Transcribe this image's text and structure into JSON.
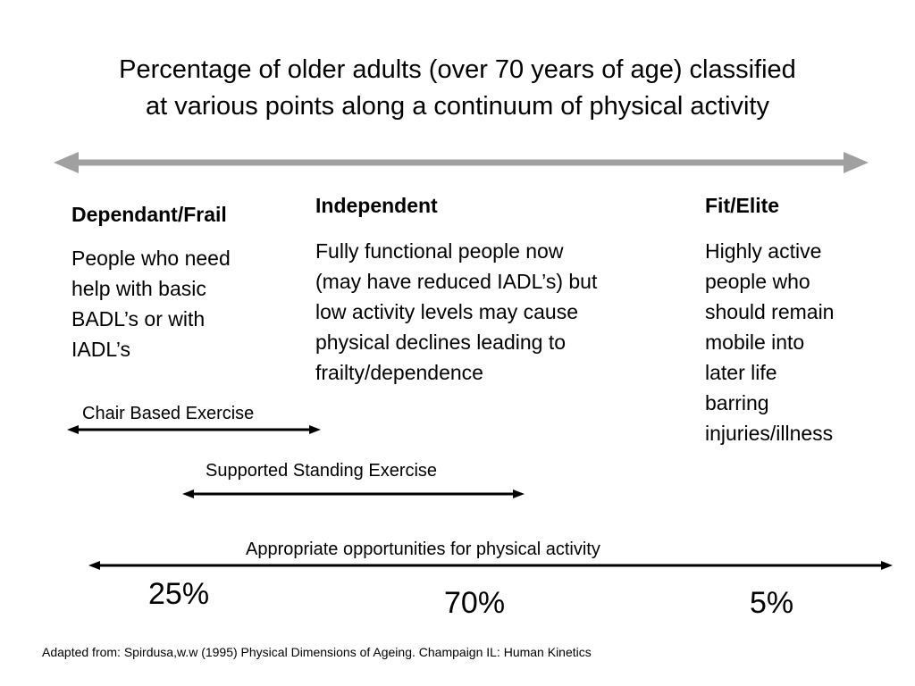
{
  "title": {
    "line1": "Percentage of older adults (over 70 years of age) classified",
    "line2": "at various points along a continuum of physical activity"
  },
  "continuum_arrow": {
    "color": "#a0a0a0"
  },
  "categories": [
    {
      "heading": "Dependant/Frail",
      "lines": [
        "People who need",
        "help with basic",
        "BADL’s or with",
        "IADL’s"
      ],
      "percent": "25%"
    },
    {
      "heading": "Independent",
      "lines": [
        "Fully functional people now",
        "(may have reduced IADL’s) but",
        "low activity levels may cause",
        "physical declines leading to",
        "frailty/dependence"
      ],
      "percent": "70%"
    },
    {
      "heading": "Fit/Elite",
      "lines": [
        "Highly active",
        "people who",
        "should remain",
        "mobile into",
        "later life",
        "barring",
        "injuries/illness"
      ],
      "percent": "5%"
    }
  ],
  "ranges": [
    {
      "label": "Chair Based Exercise"
    },
    {
      "label": "Supported Standing Exercise"
    },
    {
      "label": "Appropriate opportunities for physical activity"
    }
  ],
  "source": "Adapted from: Spirdusa,w.w (1995) Physical Dimensions of Ageing. Champaign IL: Human Kinetics"
}
